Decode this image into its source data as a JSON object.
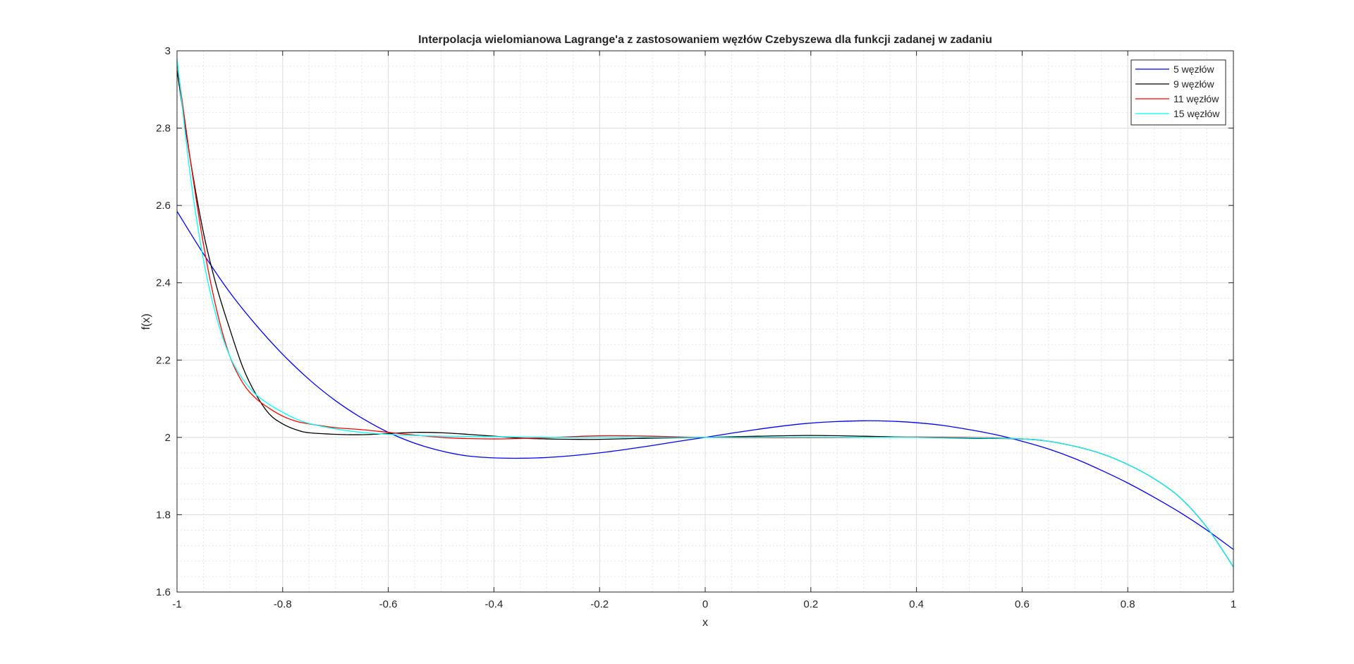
{
  "chart_data": {
    "type": "line",
    "title": "Interpolacja wielomianowa Lagrange'a z zastosowaniem węzłów Czebyszewa dla funkcji zadanej w zadaniu",
    "xlabel": "x",
    "ylabel": "f(x)",
    "xlim": [
      -1,
      1
    ],
    "ylim": [
      1.6,
      3
    ],
    "xticks": [
      -1,
      -0.8,
      -0.6,
      -0.4,
      -0.2,
      0,
      0.2,
      0.4,
      0.6,
      0.8,
      1
    ],
    "xtick_labels": [
      "-1",
      "-0.8",
      "-0.6",
      "-0.4",
      "-0.2",
      "0",
      "0.2",
      "0.4",
      "0.6",
      "0.8",
      "1"
    ],
    "yticks": [
      1.6,
      1.8,
      2,
      2.2,
      2.4,
      2.6,
      2.8,
      3
    ],
    "ytick_labels": [
      "1.6",
      "1.8",
      "2",
      "2.2",
      "2.4",
      "2.6",
      "2.8",
      "3"
    ],
    "grid": true,
    "minor_grid": true,
    "legend_position": "top-right",
    "series": [
      {
        "name": "5 węzłów",
        "color": "#0000ff",
        "x": [
          -1.0,
          -0.95,
          -0.9,
          -0.85,
          -0.8,
          -0.75,
          -0.7,
          -0.65,
          -0.6,
          -0.55,
          -0.5,
          -0.45,
          -0.4,
          -0.35,
          -0.3,
          -0.25,
          -0.2,
          -0.15,
          -0.1,
          -0.05,
          0.0,
          0.05,
          0.1,
          0.15,
          0.2,
          0.25,
          0.3,
          0.35,
          0.4,
          0.45,
          0.5,
          0.55,
          0.6,
          0.65,
          0.7,
          0.75,
          0.8,
          0.85,
          0.9,
          0.95,
          1.0
        ],
        "y": [
          2.585,
          2.475,
          2.375,
          2.29,
          2.215,
          2.15,
          2.095,
          2.05,
          2.013,
          1.985,
          1.965,
          1.952,
          1.947,
          1.946,
          1.948,
          1.953,
          1.96,
          1.969,
          1.979,
          1.99,
          2.0,
          2.011,
          2.021,
          2.03,
          2.037,
          2.041,
          2.043,
          2.042,
          2.038,
          2.031,
          2.02,
          2.007,
          1.99,
          1.97,
          1.945,
          1.915,
          1.882,
          1.845,
          1.805,
          1.76,
          1.71
        ]
      },
      {
        "name": "9 węzłów",
        "color": "#000000",
        "x": [
          -1.0,
          -0.975,
          -0.95,
          -0.925,
          -0.9,
          -0.875,
          -0.85,
          -0.825,
          -0.8,
          -0.775,
          -0.75,
          -0.7,
          -0.65,
          -0.6,
          -0.55,
          -0.5,
          -0.45,
          -0.4,
          -0.35,
          -0.3,
          -0.25,
          -0.2,
          -0.1,
          0.0,
          0.1,
          0.2,
          0.3,
          0.4,
          0.5,
          0.6,
          0.65,
          0.7,
          0.75,
          0.8,
          0.85,
          0.9,
          0.95,
          1.0
        ],
        "y": [
          2.95,
          2.72,
          2.53,
          2.39,
          2.28,
          2.18,
          2.11,
          2.06,
          2.035,
          2.02,
          2.012,
          2.008,
          2.007,
          2.01,
          2.013,
          2.012,
          2.008,
          2.003,
          1.998,
          1.996,
          1.995,
          1.995,
          1.998,
          2.0,
          2.003,
          2.005,
          2.003,
          2.0,
          1.998,
          1.996,
          1.99,
          1.977,
          1.958,
          1.93,
          1.893,
          1.843,
          1.767,
          1.665
        ]
      },
      {
        "name": "11 węzłów",
        "color": "#ff0000",
        "x": [
          -1.0,
          -0.975,
          -0.95,
          -0.925,
          -0.9,
          -0.875,
          -0.85,
          -0.825,
          -0.8,
          -0.775,
          -0.75,
          -0.7,
          -0.65,
          -0.6,
          -0.55,
          -0.5,
          -0.45,
          -0.4,
          -0.35,
          -0.3,
          -0.25,
          -0.2,
          -0.15,
          -0.1,
          0.0,
          0.1,
          0.2,
          0.3,
          0.4,
          0.5,
          0.6,
          0.65,
          0.7,
          0.75,
          0.8,
          0.85,
          0.9,
          0.95,
          1.0
        ],
        "y": [
          2.97,
          2.72,
          2.5,
          2.33,
          2.21,
          2.14,
          2.1,
          2.075,
          2.055,
          2.042,
          2.035,
          2.025,
          2.02,
          2.013,
          2.006,
          2.0,
          1.997,
          1.996,
          1.997,
          1.999,
          2.002,
          2.004,
          2.004,
          2.003,
          2.0,
          1.999,
          1.999,
          2.0,
          2.001,
          2.0,
          1.996,
          1.99,
          1.977,
          1.958,
          1.93,
          1.893,
          1.843,
          1.767,
          1.665
        ]
      },
      {
        "name": "15 węzłów",
        "color": "#00ffff",
        "x": [
          -1.0,
          -0.975,
          -0.95,
          -0.925,
          -0.9,
          -0.875,
          -0.85,
          -0.825,
          -0.8,
          -0.775,
          -0.75,
          -0.7,
          -0.65,
          -0.6,
          -0.55,
          -0.5,
          -0.4,
          -0.3,
          -0.2,
          -0.1,
          0.0,
          0.1,
          0.2,
          0.3,
          0.4,
          0.5,
          0.6,
          0.65,
          0.7,
          0.75,
          0.8,
          0.85,
          0.9,
          0.95,
          1.0
        ],
        "y": [
          2.98,
          2.68,
          2.46,
          2.31,
          2.21,
          2.15,
          2.11,
          2.085,
          2.065,
          2.048,
          2.036,
          2.022,
          2.013,
          2.008,
          2.005,
          2.003,
          2.002,
          2.0,
          2.0,
          2.0,
          2.0,
          2.0,
          2.0,
          2.0,
          2.0,
          1.999,
          1.996,
          1.99,
          1.977,
          1.958,
          1.93,
          1.893,
          1.843,
          1.767,
          1.665
        ]
      }
    ]
  }
}
